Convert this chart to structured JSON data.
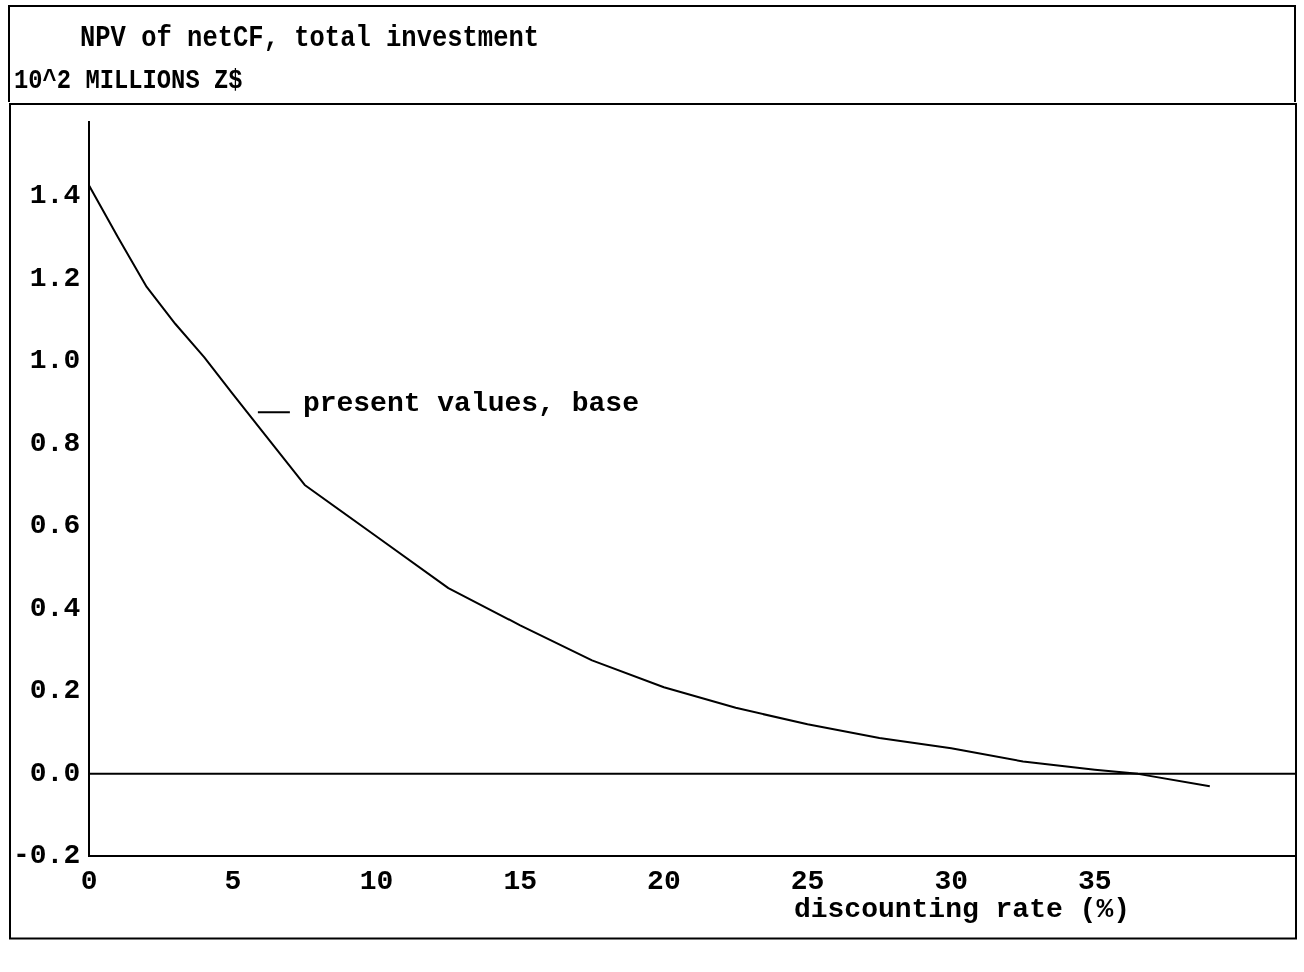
{
  "chart_data": {
    "type": "line",
    "title": "NPV of netCF, total investment",
    "ylabel": "10^2 MILLIONS Z$",
    "xlabel": "discounting rate (%)",
    "series": [
      {
        "name": "present values, base",
        "color": "#000000",
        "x": [
          0,
          1,
          2,
          3,
          4,
          5,
          7.5,
          10,
          12.5,
          15,
          17.5,
          20,
          22.5,
          25,
          27.5,
          30,
          32.5,
          35,
          36.5,
          39
        ],
        "values": [
          1.425,
          1.3,
          1.18,
          1.09,
          1.01,
          0.92,
          0.7,
          0.575,
          0.45,
          0.36,
          0.275,
          0.21,
          0.16,
          0.12,
          0.087,
          0.062,
          0.03,
          0.01,
          0,
          -0.03
        ]
      }
    ],
    "xlim": [
      0,
      42
    ],
    "xticks": [
      0,
      5,
      10,
      15,
      20,
      25,
      30,
      35
    ],
    "ylim": [
      -0.2,
      1.58
    ],
    "yticks": [
      {
        "value": -0.2,
        "label": "-0.2"
      },
      {
        "value": 0,
        "label": "0.0"
      },
      {
        "value": 0.2,
        "label": "0.2"
      },
      {
        "value": 0.4,
        "label": "0.4"
      },
      {
        "value": 0.6,
        "label": "0.6"
      },
      {
        "value": 0.8,
        "label": "0.8"
      },
      {
        "value": 1,
        "label": "1.0"
      },
      {
        "value": 1.2,
        "label": "1.2"
      },
      {
        "value": 1.4,
        "label": "1.4"
      }
    ],
    "ref_lines": [
      {
        "axis": "y",
        "value": 0
      }
    ],
    "grid": false,
    "legend": "left",
    "marker": "none",
    "line_style": "solid"
  }
}
